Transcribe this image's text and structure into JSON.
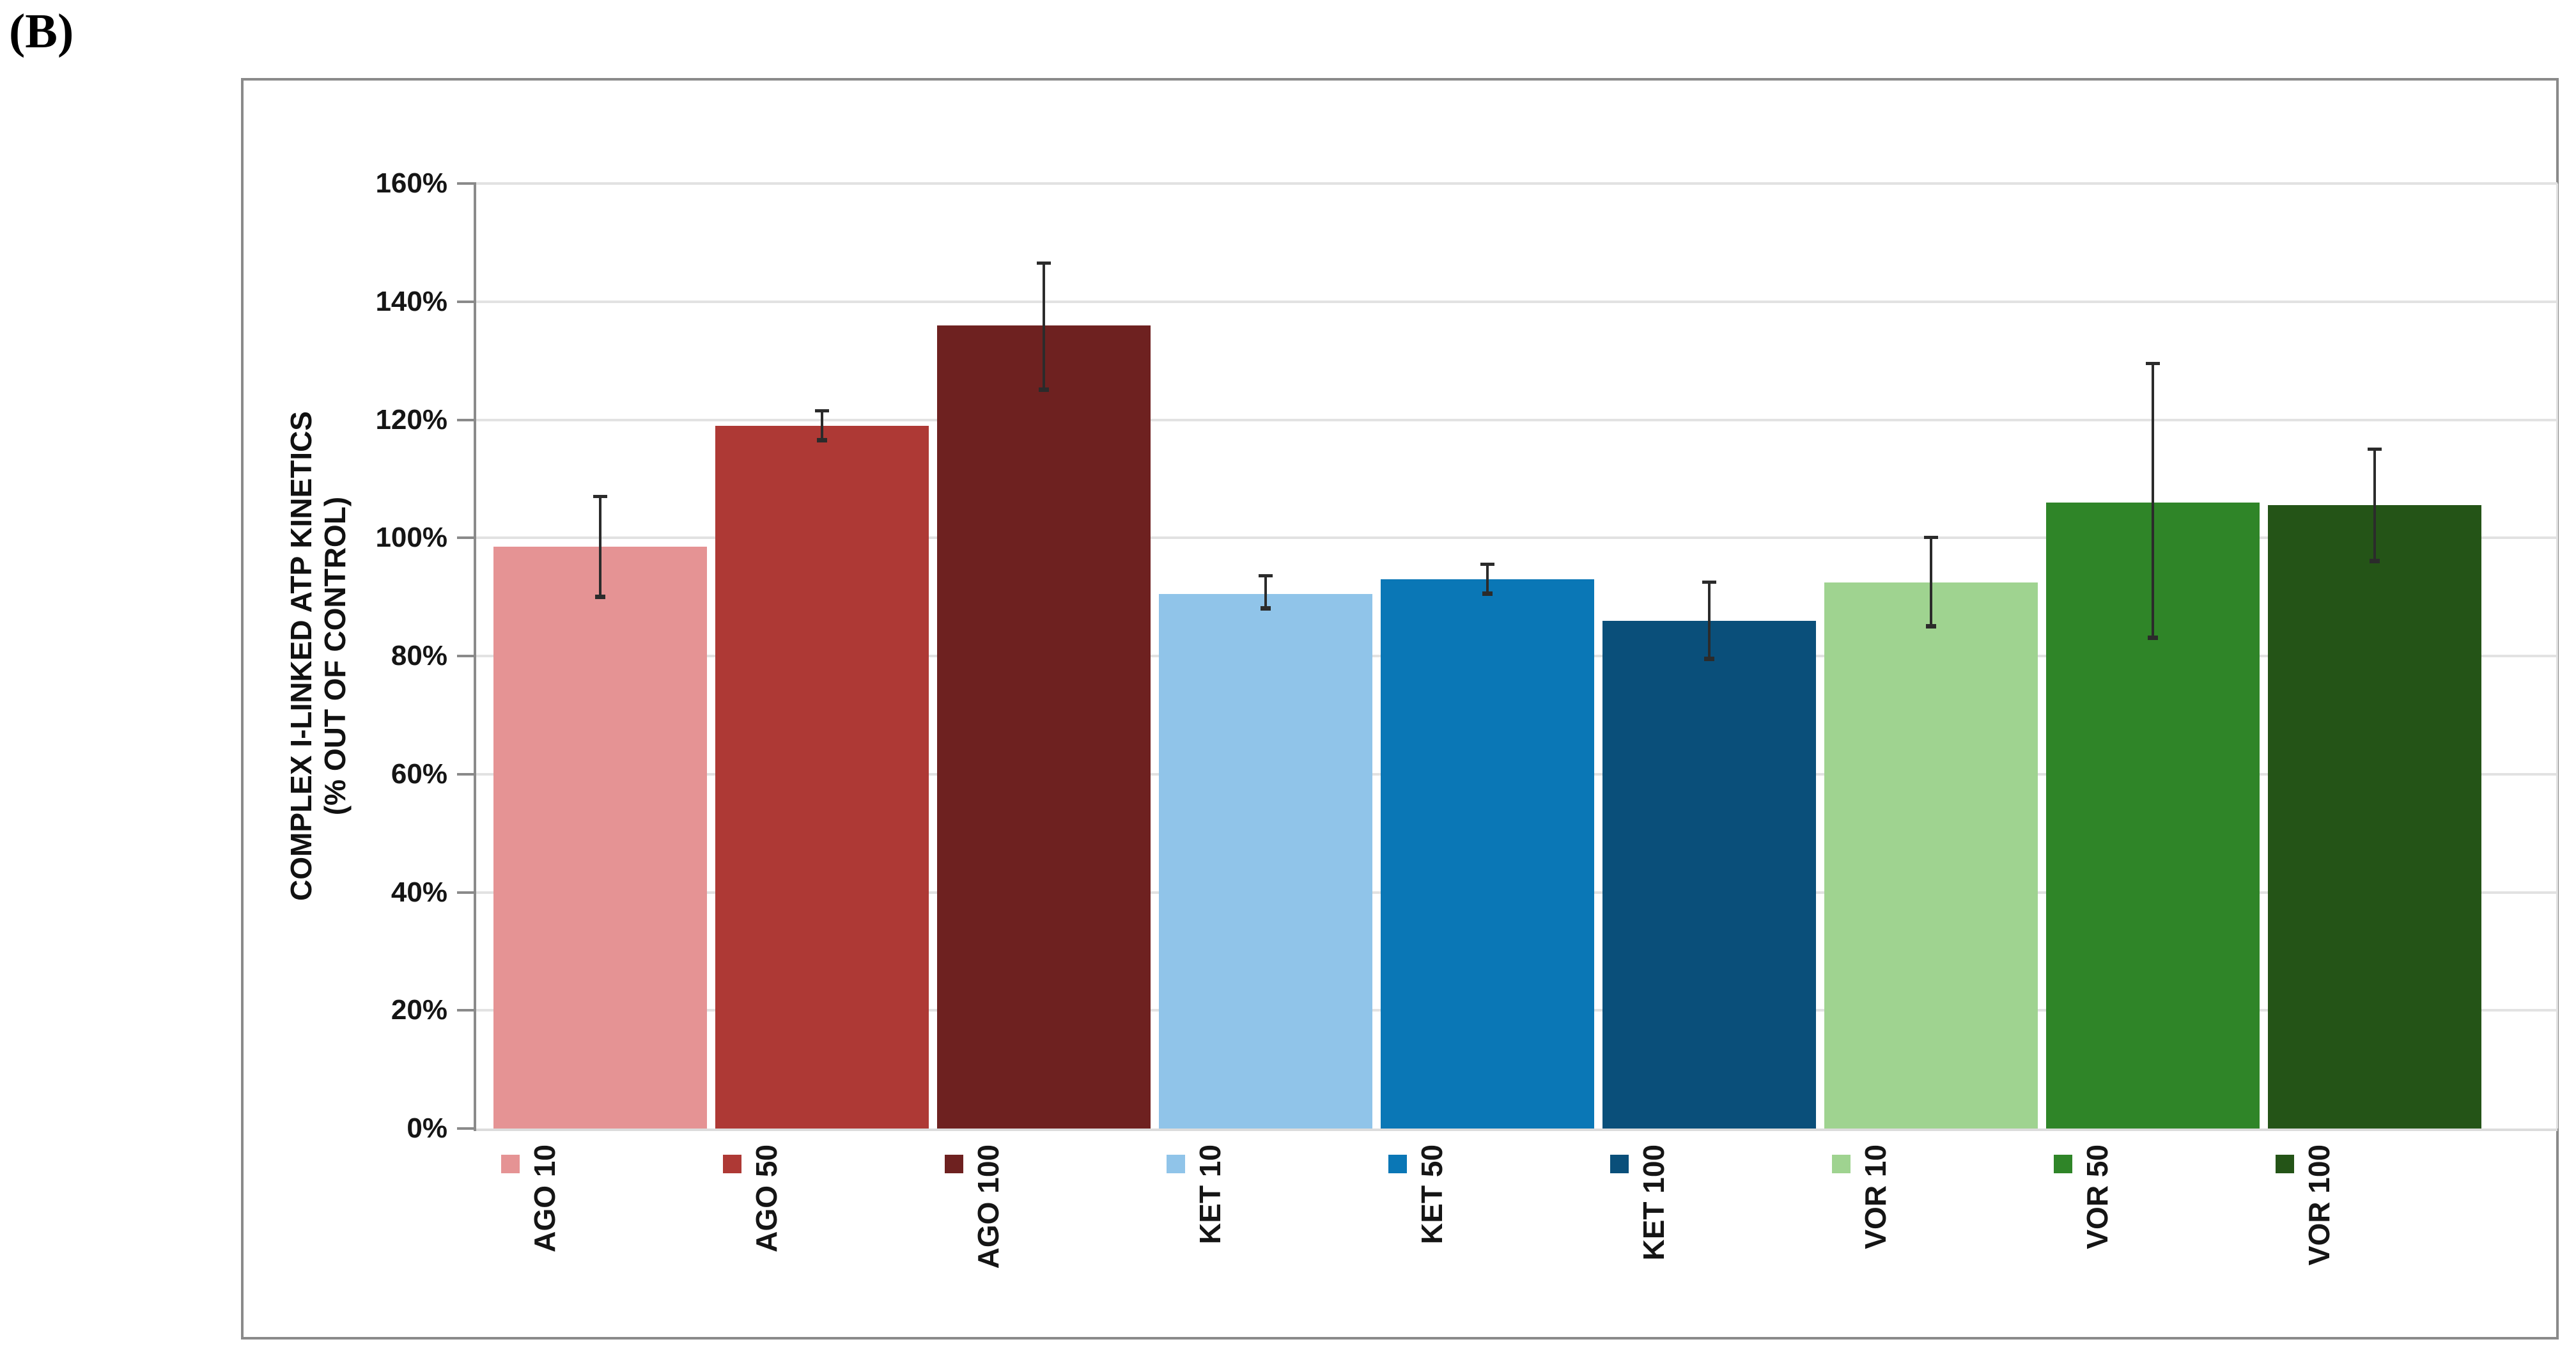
{
  "figure_label": "(B)",
  "colors": {
    "grid": "#e2e2e2",
    "axis": "#8a8a8a",
    "frame": "#8a8a8a",
    "error_bar": "#2b2b2b",
    "text": "#151515"
  },
  "chart_data": {
    "type": "bar",
    "title": "",
    "ylabel_line1": "COMPLEX I-LINKED ATP KINETICS",
    "ylabel_line2": "(% OUT OF CONTROL)",
    "xlabel": "",
    "ylim": [
      0,
      160
    ],
    "y_tick_step": 20,
    "y_ticks": [
      "0%",
      "20%",
      "40%",
      "60%",
      "80%",
      "100%",
      "120%",
      "140%",
      "160%"
    ],
    "grid": true,
    "legend_position": "keys-under-axis",
    "categories": [
      "AGO 10",
      "AGO 50",
      "AGO 100",
      "KET 10",
      "KET 50",
      "KET 100",
      "VOR 10",
      "VOR 50",
      "VOR 100"
    ],
    "bars": [
      {
        "label": "AGO 10",
        "value": 98.5,
        "error_high": 107.0,
        "error_low": 90.0,
        "color": "#e59394"
      },
      {
        "label": "AGO 50",
        "value": 119.0,
        "error_high": 121.5,
        "error_low": 116.5,
        "color": "#ae3935"
      },
      {
        "label": "AGO 100",
        "value": 136.0,
        "error_high": 146.5,
        "error_low": 125.0,
        "color": "#6e2120"
      },
      {
        "label": "KET 10",
        "value": 90.5,
        "error_high": 93.5,
        "error_low": 88.0,
        "color": "#90c4e9"
      },
      {
        "label": "KET 50",
        "value": 93.0,
        "error_high": 95.5,
        "error_low": 90.5,
        "color": "#0a77b6"
      },
      {
        "label": "KET 100",
        "value": 86.0,
        "error_high": 92.5,
        "error_low": 79.5,
        "color": "#0a4f7a"
      },
      {
        "label": "VOR 10",
        "value": 92.5,
        "error_high": 100.0,
        "error_low": 85.0,
        "color": "#9fd390"
      },
      {
        "label": "VOR 50",
        "value": 106.0,
        "error_high": 129.5,
        "error_low": 83.0,
        "color": "#2f8528"
      },
      {
        "label": "VOR 100",
        "value": 105.5,
        "error_high": 115.0,
        "error_low": 96.0,
        "color": "#245417"
      }
    ]
  }
}
